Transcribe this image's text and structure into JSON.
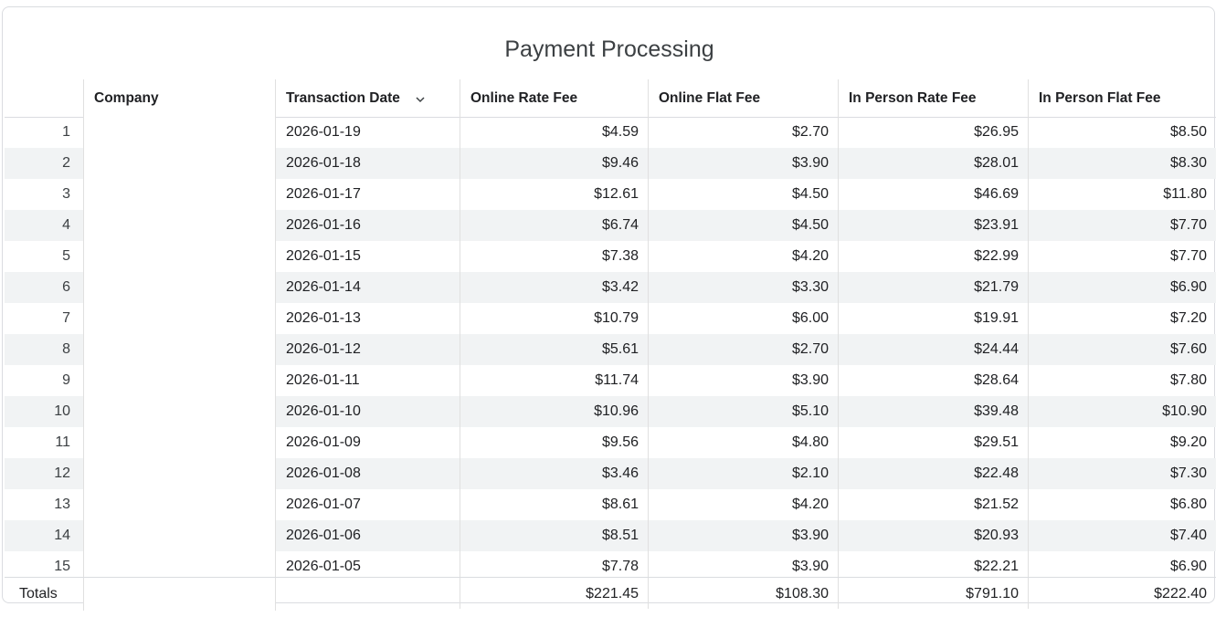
{
  "title": "Payment Processing",
  "columns": {
    "company": "Company",
    "transaction_date": "Transaction Date",
    "online_rate_fee": "Online Rate Fee",
    "online_flat_fee": "Online Flat Fee",
    "in_person_rate_fee": "In Person Rate Fee",
    "in_person_flat_fee": "In Person Flat Fee"
  },
  "sort_icon": "chevron-down-icon",
  "rows": [
    {
      "n": "1",
      "date": "2026-01-19",
      "orf": "$4.59",
      "off": "$2.70",
      "iprf": "$26.95",
      "ipff": "$8.50"
    },
    {
      "n": "2",
      "date": "2026-01-18",
      "orf": "$9.46",
      "off": "$3.90",
      "iprf": "$28.01",
      "ipff": "$8.30"
    },
    {
      "n": "3",
      "date": "2026-01-17",
      "orf": "$12.61",
      "off": "$4.50",
      "iprf": "$46.69",
      "ipff": "$11.80"
    },
    {
      "n": "4",
      "date": "2026-01-16",
      "orf": "$6.74",
      "off": "$4.50",
      "iprf": "$23.91",
      "ipff": "$7.70"
    },
    {
      "n": "5",
      "date": "2026-01-15",
      "orf": "$7.38",
      "off": "$4.20",
      "iprf": "$22.99",
      "ipff": "$7.70"
    },
    {
      "n": "6",
      "date": "2026-01-14",
      "orf": "$3.42",
      "off": "$3.30",
      "iprf": "$21.79",
      "ipff": "$6.90"
    },
    {
      "n": "7",
      "date": "2026-01-13",
      "orf": "$10.79",
      "off": "$6.00",
      "iprf": "$19.91",
      "ipff": "$7.20"
    },
    {
      "n": "8",
      "date": "2026-01-12",
      "orf": "$5.61",
      "off": "$2.70",
      "iprf": "$24.44",
      "ipff": "$7.60"
    },
    {
      "n": "9",
      "date": "2026-01-11",
      "orf": "$11.74",
      "off": "$3.90",
      "iprf": "$28.64",
      "ipff": "$7.80"
    },
    {
      "n": "10",
      "date": "2026-01-10",
      "orf": "$10.96",
      "off": "$5.10",
      "iprf": "$39.48",
      "ipff": "$10.90"
    },
    {
      "n": "11",
      "date": "2026-01-09",
      "orf": "$9.56",
      "off": "$4.80",
      "iprf": "$29.51",
      "ipff": "$9.20"
    },
    {
      "n": "12",
      "date": "2026-01-08",
      "orf": "$3.46",
      "off": "$2.10",
      "iprf": "$22.48",
      "ipff": "$7.30"
    },
    {
      "n": "13",
      "date": "2026-01-07",
      "orf": "$8.61",
      "off": "$4.20",
      "iprf": "$21.52",
      "ipff": "$6.80"
    },
    {
      "n": "14",
      "date": "2026-01-06",
      "orf": "$8.51",
      "off": "$3.90",
      "iprf": "$20.93",
      "ipff": "$7.40"
    },
    {
      "n": "15",
      "date": "2026-01-05",
      "orf": "$7.78",
      "off": "$3.90",
      "iprf": "$22.21",
      "ipff": "$6.90"
    }
  ],
  "totals": {
    "label": "Totals",
    "orf": "$221.45",
    "off": "$108.30",
    "iprf": "$791.10",
    "ipff": "$222.40"
  },
  "colors": {
    "stripe": "#f1f3f4",
    "border": "#dadce0"
  }
}
